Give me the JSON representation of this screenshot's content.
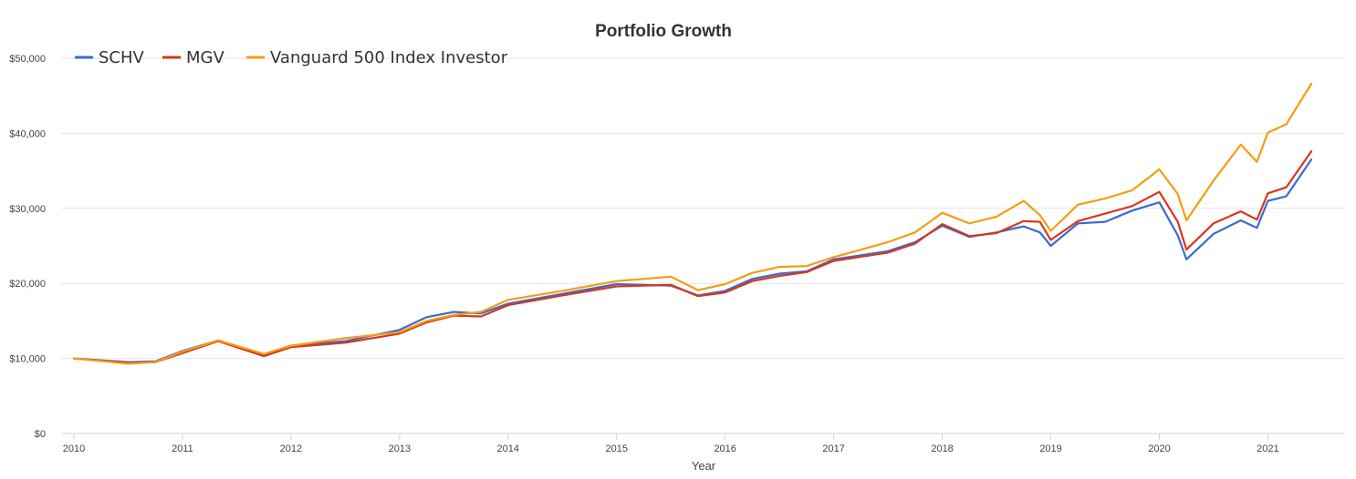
{
  "chart_data": {
    "type": "line",
    "title": "Portfolio Growth",
    "xlabel": "Year",
    "ylabel": "",
    "xlim": [
      2010.0,
      2021.4
    ],
    "ylim": [
      0,
      50000
    ],
    "x_ticks": [
      "2010",
      "2011",
      "2012",
      "2013",
      "2014",
      "2015",
      "2016",
      "2017",
      "2018",
      "2019",
      "2020",
      "2021"
    ],
    "y_ticks": [
      "$0",
      "$10,000",
      "$20,000",
      "$30,000",
      "$40,000",
      "$50,000"
    ],
    "y_tick_values": [
      0,
      10000,
      20000,
      30000,
      40000,
      50000
    ],
    "grid": "horizontal",
    "legend_position": "top-left",
    "series": [
      {
        "name": "SCHV",
        "color": "#3a6bd1",
        "points": [
          [
            2010.0,
            10000
          ],
          [
            2010.5,
            9500
          ],
          [
            2010.75,
            9600
          ],
          [
            2011.0,
            11000
          ],
          [
            2011.33,
            12400
          ],
          [
            2011.75,
            10500
          ],
          [
            2012.0,
            11700
          ],
          [
            2012.5,
            12300
          ],
          [
            2013.0,
            13800
          ],
          [
            2013.25,
            15500
          ],
          [
            2013.5,
            16200
          ],
          [
            2013.75,
            16000
          ],
          [
            2014.0,
            17300
          ],
          [
            2014.5,
            18600
          ],
          [
            2015.0,
            19900
          ],
          [
            2015.5,
            19700
          ],
          [
            2015.75,
            18400
          ],
          [
            2016.0,
            19000
          ],
          [
            2016.25,
            20600
          ],
          [
            2016.5,
            21300
          ],
          [
            2016.75,
            21600
          ],
          [
            2017.0,
            23200
          ],
          [
            2017.5,
            24300
          ],
          [
            2017.75,
            25500
          ],
          [
            2018.0,
            27700
          ],
          [
            2018.25,
            26200
          ],
          [
            2018.5,
            26800
          ],
          [
            2018.75,
            27600
          ],
          [
            2018.9,
            26800
          ],
          [
            2019.0,
            25000
          ],
          [
            2019.25,
            28000
          ],
          [
            2019.5,
            28200
          ],
          [
            2019.75,
            29700
          ],
          [
            2020.0,
            30800
          ],
          [
            2020.17,
            26400
          ],
          [
            2020.25,
            23200
          ],
          [
            2020.5,
            26600
          ],
          [
            2020.75,
            28400
          ],
          [
            2020.9,
            27400
          ],
          [
            2021.0,
            31000
          ],
          [
            2021.17,
            31600
          ],
          [
            2021.4,
            36500
          ]
        ]
      },
      {
        "name": "MGV",
        "color": "#d9361c",
        "points": [
          [
            2010.0,
            10000
          ],
          [
            2010.5,
            9400
          ],
          [
            2010.75,
            9500
          ],
          [
            2011.0,
            10700
          ],
          [
            2011.33,
            12300
          ],
          [
            2011.75,
            10300
          ],
          [
            2012.0,
            11500
          ],
          [
            2012.5,
            12100
          ],
          [
            2013.0,
            13300
          ],
          [
            2013.25,
            14800
          ],
          [
            2013.5,
            15700
          ],
          [
            2013.75,
            15600
          ],
          [
            2014.0,
            17100
          ],
          [
            2014.5,
            18400
          ],
          [
            2015.0,
            19600
          ],
          [
            2015.5,
            19800
          ],
          [
            2015.75,
            18300
          ],
          [
            2016.0,
            18800
          ],
          [
            2016.25,
            20300
          ],
          [
            2016.5,
            21000
          ],
          [
            2016.75,
            21500
          ],
          [
            2017.0,
            23000
          ],
          [
            2017.5,
            24100
          ],
          [
            2017.75,
            25300
          ],
          [
            2018.0,
            27900
          ],
          [
            2018.25,
            26300
          ],
          [
            2018.5,
            26700
          ],
          [
            2018.75,
            28300
          ],
          [
            2018.9,
            28200
          ],
          [
            2019.0,
            25800
          ],
          [
            2019.25,
            28300
          ],
          [
            2019.5,
            29300
          ],
          [
            2019.75,
            30300
          ],
          [
            2020.0,
            32200
          ],
          [
            2020.17,
            28200
          ],
          [
            2020.25,
            24500
          ],
          [
            2020.5,
            28000
          ],
          [
            2020.75,
            29600
          ],
          [
            2020.9,
            28500
          ],
          [
            2021.0,
            32000
          ],
          [
            2021.17,
            32800
          ],
          [
            2021.4,
            37600
          ]
        ]
      },
      {
        "name": "Vanguard 500 Index Investor",
        "color": "#f59d12",
        "points": [
          [
            2010.0,
            10000
          ],
          [
            2010.5,
            9300
          ],
          [
            2010.75,
            9500
          ],
          [
            2011.0,
            10900
          ],
          [
            2011.33,
            12400
          ],
          [
            2011.75,
            10600
          ],
          [
            2012.0,
            11700
          ],
          [
            2012.5,
            12700
          ],
          [
            2013.0,
            13500
          ],
          [
            2013.25,
            15000
          ],
          [
            2013.5,
            15800
          ],
          [
            2013.75,
            16200
          ],
          [
            2014.0,
            17800
          ],
          [
            2014.5,
            19000
          ],
          [
            2015.0,
            20300
          ],
          [
            2015.5,
            20900
          ],
          [
            2015.75,
            19100
          ],
          [
            2016.0,
            19900
          ],
          [
            2016.25,
            21400
          ],
          [
            2016.5,
            22200
          ],
          [
            2016.75,
            22300
          ],
          [
            2017.0,
            23500
          ],
          [
            2017.5,
            25500
          ],
          [
            2017.75,
            26800
          ],
          [
            2018.0,
            29400
          ],
          [
            2018.25,
            28000
          ],
          [
            2018.5,
            28900
          ],
          [
            2018.75,
            31000
          ],
          [
            2018.9,
            29100
          ],
          [
            2019.0,
            27000
          ],
          [
            2019.25,
            30500
          ],
          [
            2019.5,
            31300
          ],
          [
            2019.75,
            32400
          ],
          [
            2020.0,
            35200
          ],
          [
            2020.17,
            31900
          ],
          [
            2020.25,
            28400
          ],
          [
            2020.5,
            33700
          ],
          [
            2020.75,
            38500
          ],
          [
            2020.9,
            36200
          ],
          [
            2021.0,
            40100
          ],
          [
            2021.17,
            41200
          ],
          [
            2021.4,
            46600
          ]
        ]
      }
    ]
  }
}
